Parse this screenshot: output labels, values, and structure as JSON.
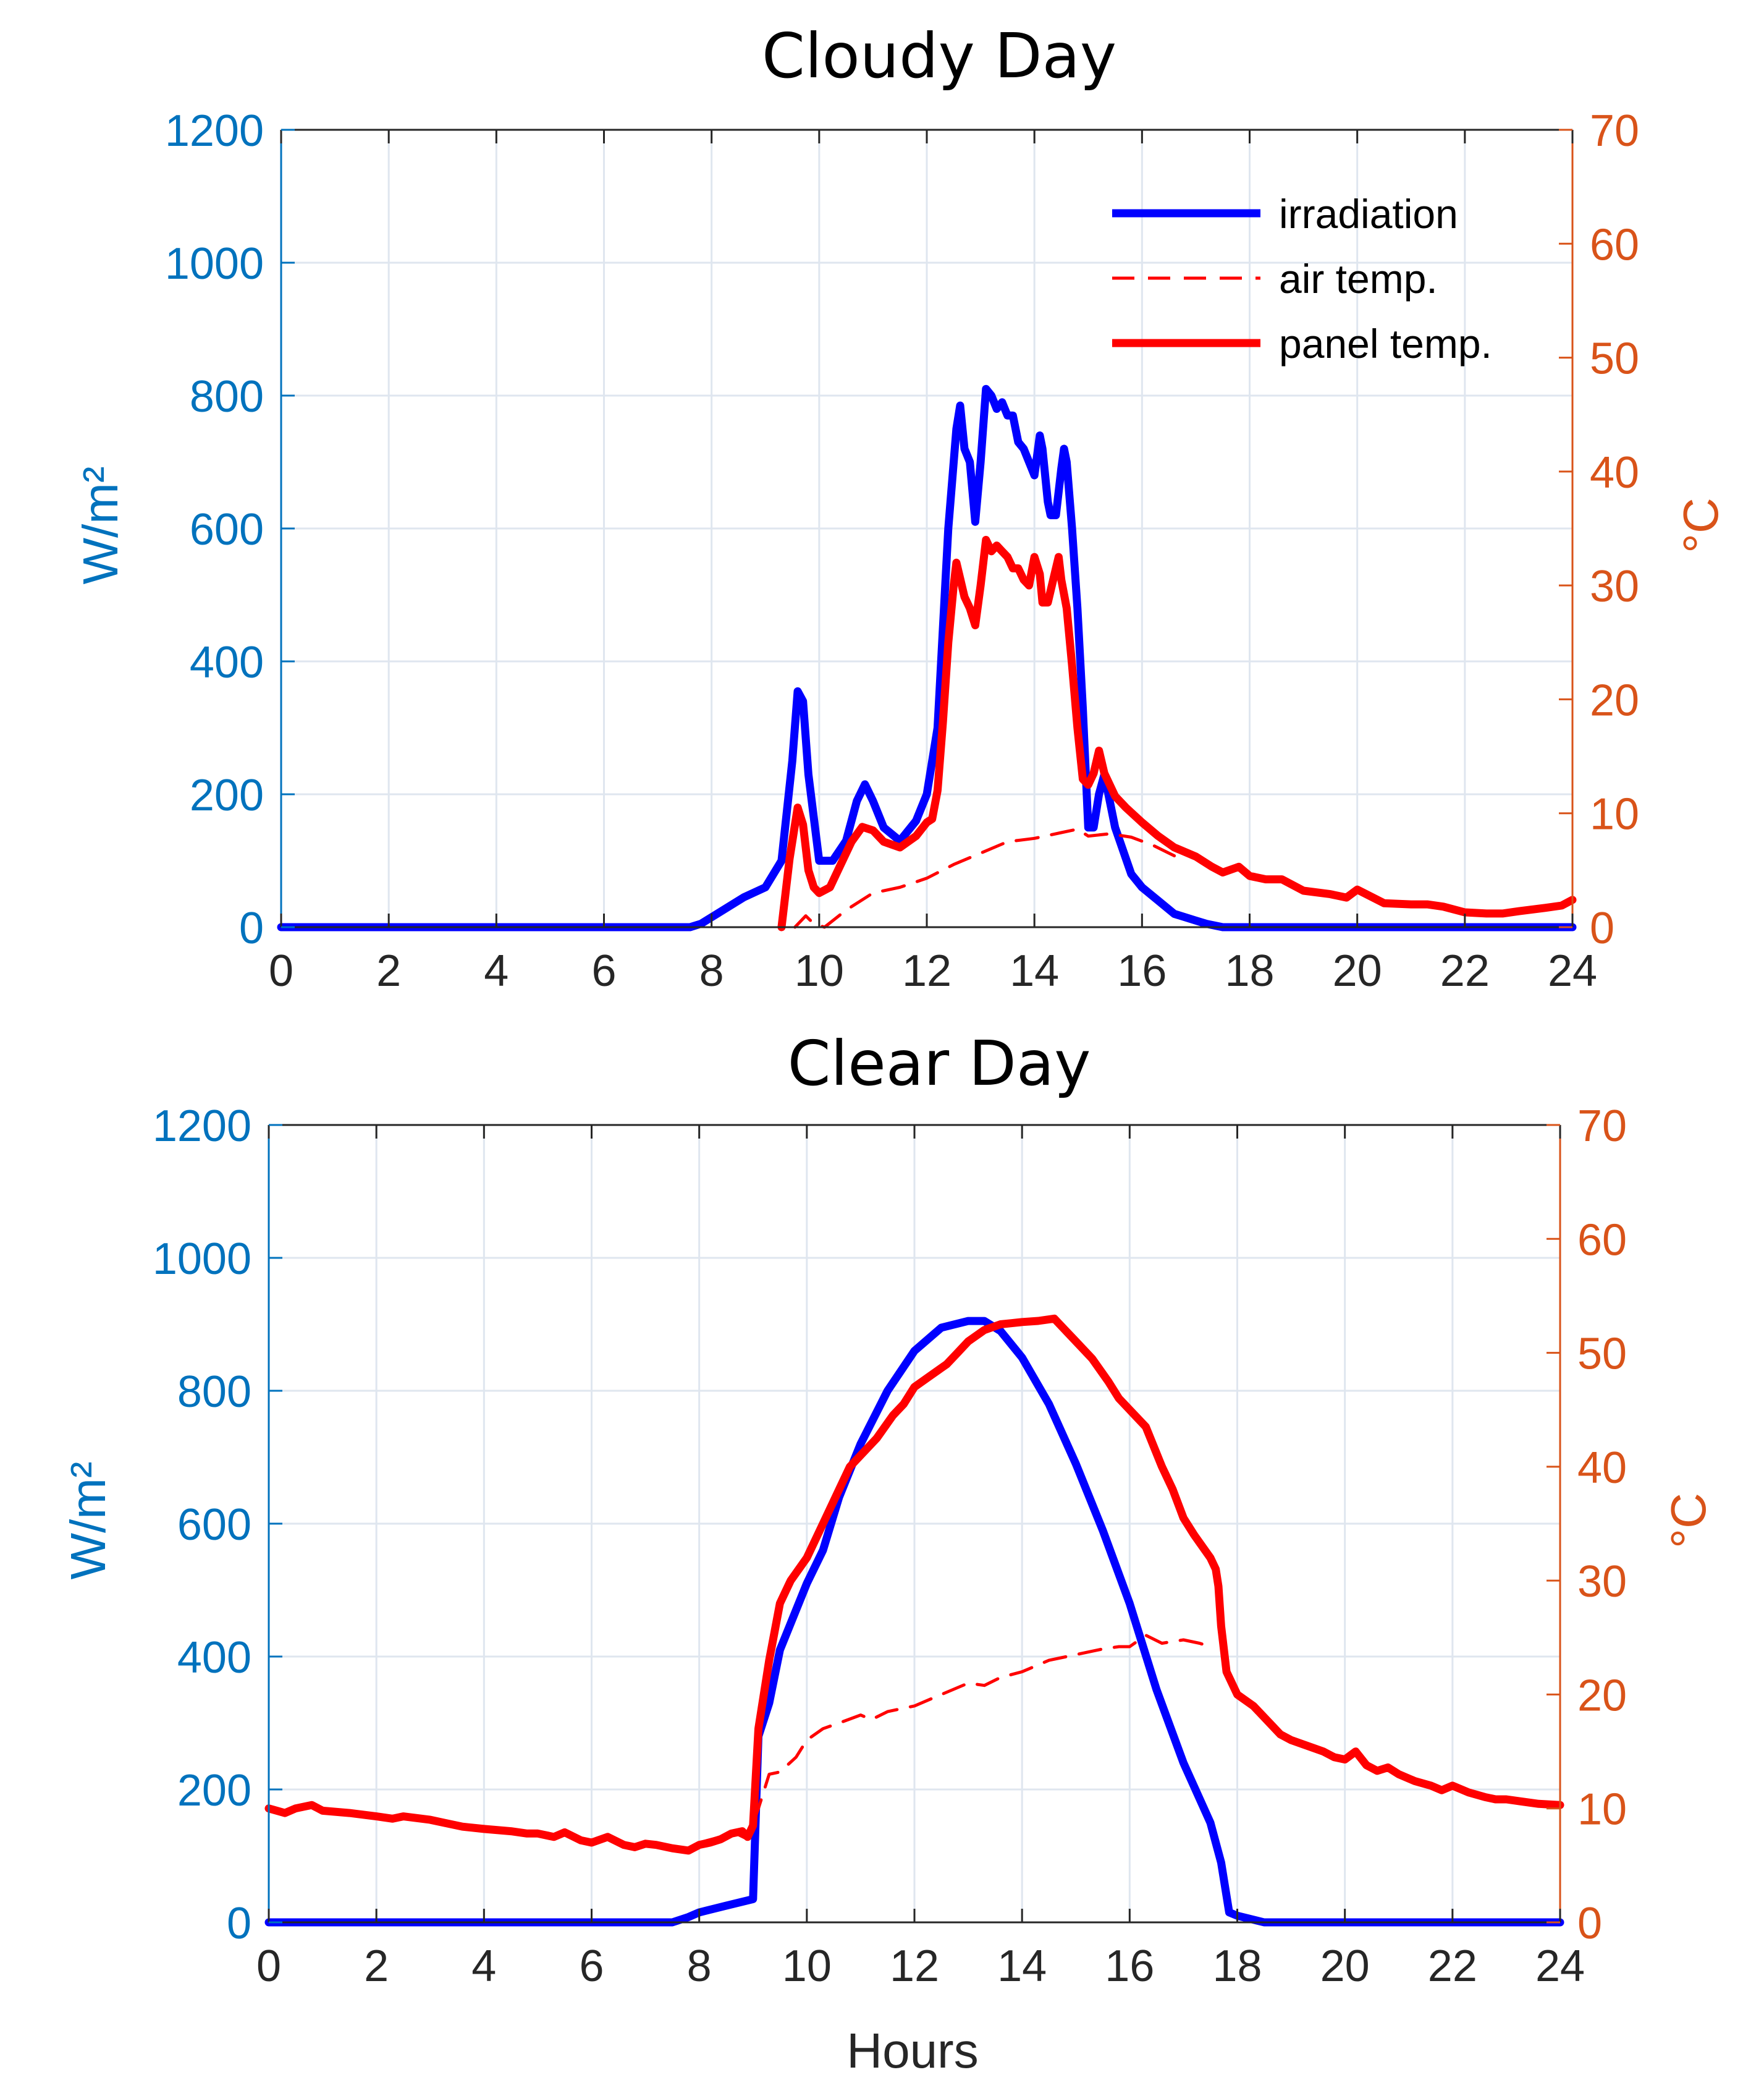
{
  "colors": {
    "irradiation": "#0000ff",
    "temperature": "#ff0000",
    "left_axis": "#0072bd",
    "right_axis": "#d95319",
    "x_axis": "#262626",
    "grid": "#dfe6ef"
  },
  "chart_data": [
    {
      "type": "line",
      "title": "Cloudy Day",
      "xlabel": "",
      "ylabel": "W/m²",
      "ylabel_right": "°C",
      "xlim": [
        0,
        24
      ],
      "ylim": [
        0,
        1200
      ],
      "ylim_right": [
        0,
        70
      ],
      "xticks": [
        "0",
        "2",
        "4",
        "6",
        "8",
        "10",
        "12",
        "14",
        "16",
        "18",
        "20",
        "22",
        "24"
      ],
      "yticks": [
        "0",
        "200",
        "400",
        "600",
        "800",
        "1000",
        "1200"
      ],
      "yticks_right": [
        "0",
        "10",
        "20",
        "30",
        "40",
        "50",
        "60",
        "70"
      ],
      "grid": true,
      "legend_position": "top-right",
      "legend": [
        "irradiation",
        "air temp.",
        "panel temp."
      ],
      "series": [
        {
          "name": "irradiation",
          "axis": "left",
          "style": "solid",
          "x": [
            0,
            7.6,
            7.8,
            8.2,
            8.6,
            9.0,
            9.3,
            9.5,
            9.6,
            9.7,
            9.8,
            10.0,
            10.25,
            10.5,
            10.7,
            10.85,
            11.0,
            11.2,
            11.5,
            11.8,
            12.0,
            12.2,
            12.4,
            12.55,
            12.62,
            12.7,
            12.8,
            12.9,
            13.0,
            13.1,
            13.2,
            13.3,
            13.4,
            13.5,
            13.6,
            13.7,
            13.8,
            14.0,
            14.1,
            14.15,
            14.25,
            14.3,
            14.4,
            14.5,
            14.55,
            14.6,
            14.7,
            14.8,
            14.9,
            15.0,
            15.1,
            15.2,
            15.3,
            15.5,
            15.8,
            16.0,
            16.3,
            16.6,
            17.0,
            17.2,
            17.5,
            18,
            20,
            22,
            24
          ],
          "y": [
            0,
            0,
            5,
            25,
            45,
            60,
            100,
            250,
            355,
            340,
            230,
            100,
            100,
            130,
            190,
            215,
            190,
            150,
            130,
            160,
            200,
            300,
            600,
            750,
            785,
            720,
            700,
            610,
            700,
            810,
            800,
            780,
            790,
            770,
            770,
            730,
            720,
            680,
            740,
            720,
            640,
            620,
            620,
            690,
            720,
            700,
            600,
            480,
            330,
            150,
            150,
            200,
            230,
            150,
            80,
            60,
            40,
            20,
            10,
            5,
            0,
            0,
            0,
            0,
            0
          ]
        },
        {
          "name": "air temp.",
          "axis": "right",
          "style": "dashed",
          "x": [
            9.55,
            9.75,
            9.9,
            10.1,
            10.5,
            11.0,
            11.5,
            12.0,
            12.5,
            13.0,
            13.5,
            14.0,
            14.5,
            14.8,
            15.0,
            15.4,
            15.8,
            16.2,
            16.5,
            16.8
          ],
          "y": [
            0,
            1,
            0.3,
            0,
            1.5,
            3,
            3.5,
            4.3,
            5.5,
            6.5,
            7.5,
            7.8,
            8.3,
            8.6,
            8.0,
            8.2,
            7.9,
            7.2,
            6.5,
            5.8
          ]
        },
        {
          "name": "panel temp.",
          "axis": "right",
          "style": "solid",
          "x": [
            9.3,
            9.45,
            9.6,
            9.7,
            9.8,
            9.9,
            10.0,
            10.2,
            10.4,
            10.6,
            10.8,
            11.0,
            11.2,
            11.5,
            11.8,
            12.0,
            12.1,
            12.2,
            12.3,
            12.4,
            12.5,
            12.55,
            12.6,
            12.7,
            12.8,
            12.9,
            13.0,
            13.1,
            13.2,
            13.3,
            13.4,
            13.5,
            13.6,
            13.7,
            13.8,
            13.9,
            14.0,
            14.1,
            14.15,
            14.25,
            14.35,
            14.45,
            14.5,
            14.6,
            14.7,
            14.8,
            14.9,
            15.0,
            15.1,
            15.2,
            15.3,
            15.4,
            15.5,
            15.7,
            16.0,
            16.3,
            16.6,
            17.0,
            17.3,
            17.5,
            17.8,
            18.0,
            18.3,
            18.6,
            19.0,
            19.5,
            19.8,
            20.0,
            20.5,
            21.0,
            21.3,
            21.6,
            22.0,
            22.4,
            22.7,
            23.0,
            23.5,
            23.8,
            24.0
          ],
          "y": [
            0,
            6,
            10.5,
            9,
            5,
            3.5,
            3,
            3.5,
            5.5,
            7.5,
            8.8,
            8.5,
            7.5,
            7,
            8,
            9.2,
            9.5,
            12,
            18,
            25,
            30,
            32,
            31,
            29,
            28,
            26.5,
            30,
            34,
            33,
            33.5,
            33,
            32.5,
            31.5,
            31.5,
            30.5,
            30,
            32.5,
            31,
            28.5,
            28.5,
            30.5,
            32.5,
            30.5,
            28,
            23,
            17.5,
            13,
            12.5,
            13.5,
            15.5,
            13.5,
            12.5,
            11.5,
            10.5,
            9.2,
            8,
            7,
            6.2,
            5.3,
            4.8,
            5.3,
            4.5,
            4.2,
            4.2,
            3.2,
            2.9,
            2.6,
            3.3,
            2.1,
            2,
            2,
            1.8,
            1.3,
            1.2,
            1.2,
            1.4,
            1.7,
            1.9,
            2.4
          ]
        }
      ]
    },
    {
      "type": "line",
      "title": "Clear Day",
      "xlabel": "Hours",
      "ylabel": "W/m²",
      "ylabel_right": "°C",
      "xlim": [
        0,
        24
      ],
      "ylim": [
        0,
        1200
      ],
      "ylim_right": [
        0,
        70
      ],
      "xticks": [
        "0",
        "2",
        "4",
        "6",
        "8",
        "10",
        "12",
        "14",
        "16",
        "18",
        "20",
        "22",
        "24"
      ],
      "yticks": [
        "0",
        "200",
        "400",
        "600",
        "800",
        "1000",
        "1200"
      ],
      "yticks_right": [
        "0",
        "10",
        "20",
        "30",
        "40",
        "50",
        "60",
        "70"
      ],
      "grid": true,
      "series": [
        {
          "name": "irradiation",
          "axis": "left",
          "style": "solid",
          "x": [
            0,
            7.5,
            7.8,
            8.0,
            8.5,
            9.0,
            9.1,
            9.3,
            9.5,
            9.8,
            10.0,
            10.3,
            10.6,
            11.0,
            11.5,
            12.0,
            12.5,
            13.0,
            13.3,
            13.6,
            14.0,
            14.5,
            15.0,
            15.5,
            16.0,
            16.5,
            17.0,
            17.5,
            17.7,
            17.85,
            18.0,
            18.5,
            20,
            22,
            24
          ],
          "y": [
            0,
            0,
            8,
            15,
            25,
            35,
            280,
            330,
            410,
            470,
            510,
            560,
            640,
            720,
            800,
            860,
            895,
            905,
            905,
            890,
            850,
            780,
            690,
            590,
            480,
            350,
            240,
            150,
            90,
            15,
            10,
            0,
            0,
            0,
            0
          ]
        },
        {
          "name": "air temp.",
          "axis": "right",
          "style": "dashed",
          "x": [
            8.0,
            8.4,
            8.6,
            8.9,
            9.1,
            9.3,
            9.5,
            9.8,
            10.0,
            10.3,
            10.6,
            11.0,
            11.2,
            11.5,
            11.8,
            12.0,
            12.5,
            13.0,
            13.3,
            13.6,
            14.0,
            14.5,
            15.0,
            15.5,
            15.8,
            16.0,
            16.3,
            16.6,
            17.0,
            17.3,
            17.5
          ],
          "y": [
            7,
            7.5,
            8,
            7.3,
            10,
            13,
            13.2,
            14.5,
            16,
            17,
            17.5,
            18.2,
            17.8,
            18.5,
            18.8,
            19,
            20,
            21,
            20.8,
            21.5,
            22,
            23,
            23.5,
            24,
            24.2,
            24.2,
            25.2,
            24.5,
            24.8,
            24.5,
            24.2
          ]
        },
        {
          "name": "panel temp.",
          "axis": "right",
          "style": "solid",
          "x": [
            0,
            0.3,
            0.5,
            0.8,
            1,
            1.5,
            2,
            2.3,
            2.5,
            3,
            3.3,
            3.6,
            4,
            4.5,
            4.8,
            5,
            5.3,
            5.5,
            5.8,
            6,
            6.3,
            6.6,
            6.8,
            7,
            7.2,
            7.5,
            7.8,
            8,
            8.2,
            8.4,
            8.6,
            8.8,
            8.9,
            9.0,
            9.1,
            9.3,
            9.5,
            9.7,
            10,
            10.3,
            10.6,
            10.8,
            11,
            11.3,
            11.6,
            11.8,
            12,
            12.3,
            12.6,
            12.8,
            13,
            13.3,
            13.6,
            13.8,
            14,
            14.3,
            14.6,
            14.8,
            15,
            15.3,
            15.6,
            15.8,
            16,
            16.3,
            16.6,
            16.8,
            17,
            17.2,
            17.5,
            17.6,
            17.65,
            17.7,
            17.8,
            18,
            18.3,
            18.6,
            18.8,
            19,
            19.3,
            19.6,
            19.8,
            20,
            20.2,
            20.4,
            20.6,
            20.8,
            21,
            21.3,
            21.6,
            21.8,
            22,
            22.3,
            22.6,
            22.8,
            23,
            23.3,
            23.6,
            24
          ],
          "y": [
            10,
            9.6,
            10,
            10.3,
            9.8,
            9.6,
            9.3,
            9.1,
            9.3,
            9.0,
            8.7,
            8.4,
            8.2,
            8.0,
            7.8,
            7.8,
            7.5,
            7.9,
            7.2,
            7.0,
            7.5,
            6.8,
            6.6,
            6.9,
            6.8,
            6.5,
            6.3,
            6.8,
            7.0,
            7.3,
            7.8,
            8.0,
            7.5,
            8.5,
            17,
            23,
            28,
            30,
            32,
            35,
            38,
            40,
            41,
            42.5,
            44.5,
            45.5,
            47,
            48,
            49,
            50,
            51,
            52,
            52.5,
            52.6,
            52.7,
            52.8,
            53,
            52,
            51,
            49.5,
            47.5,
            46,
            45,
            43.5,
            40,
            38,
            35.5,
            34,
            32,
            31,
            29.5,
            26,
            22,
            20,
            19,
            17.5,
            16.5,
            16,
            15.5,
            15,
            14.5,
            14.3,
            15,
            13.8,
            13.3,
            13.6,
            13.0,
            12.4,
            12.0,
            11.6,
            12.0,
            11.4,
            11.0,
            10.8,
            10.8,
            10.6,
            10.4,
            10.3
          ]
        }
      ]
    }
  ]
}
